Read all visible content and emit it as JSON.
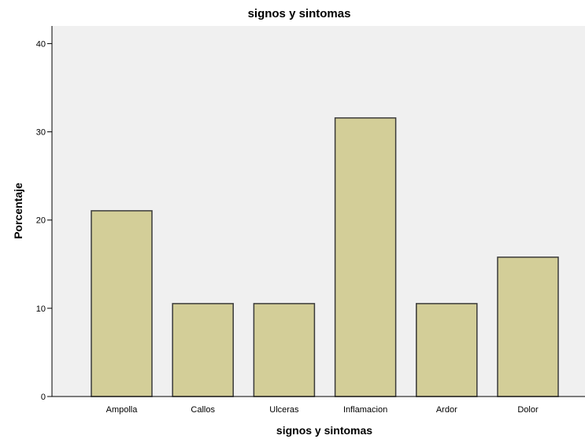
{
  "chart_data": {
    "type": "bar",
    "title": "signos y sintomas",
    "xlabel": "signos y sintomas",
    "ylabel": "Porcentaje",
    "categories": [
      "Ampolla",
      "Callos",
      "Ulceras",
      "Inflamacion",
      "Ardor",
      "Dolor"
    ],
    "values": [
      21.05,
      10.53,
      10.53,
      31.58,
      10.53,
      15.79
    ],
    "ylim": [
      0,
      42
    ],
    "yticks": [
      0,
      10,
      20,
      30,
      40
    ],
    "bar_color": "#d3ce98",
    "bar_edge_color": "#3a3a3a",
    "plot_background": "#f0f0f0",
    "grid": false,
    "legend": "none"
  }
}
